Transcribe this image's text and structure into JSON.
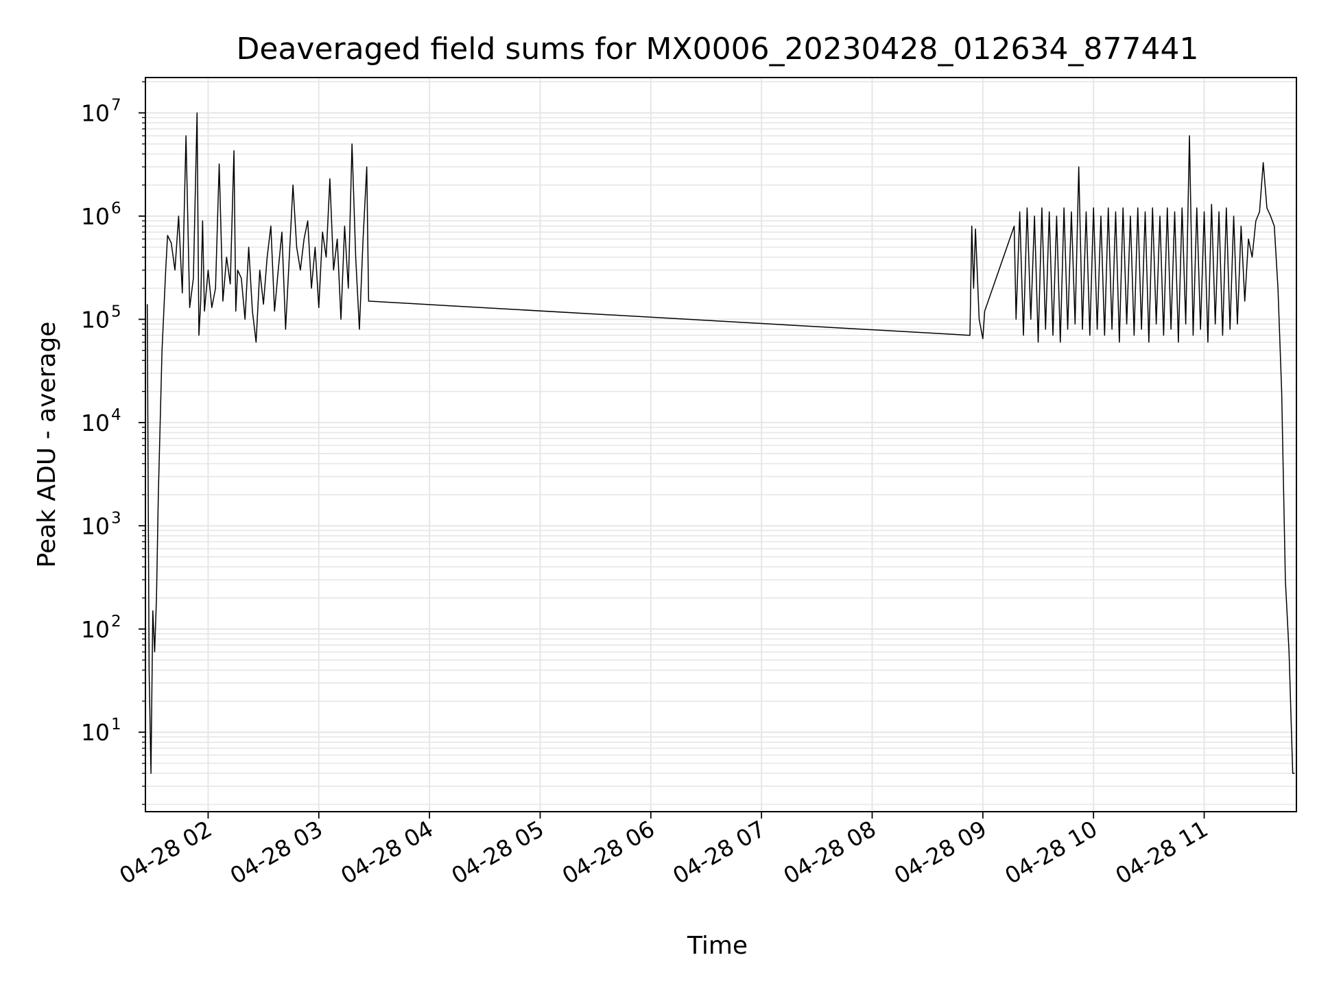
{
  "chart_data": {
    "type": "line",
    "title": "Deaveraged field sums for MX0006_20230428_012634_877441",
    "xlabel": "Time",
    "ylabel": "Peak ADU - average",
    "yscale": "log",
    "ylim": [
      1.7,
      22000000
    ],
    "xlim": [
      "2023-04-28 01:26",
      "2023-04-28 11:50"
    ],
    "grid": true,
    "grid_color": "#e6e6e6",
    "line_color": "#000000",
    "x_ticks": [
      {
        "label": "04-28 02",
        "value": "2023-04-28 02:00"
      },
      {
        "label": "04-28 03",
        "value": "2023-04-28 03:00"
      },
      {
        "label": "04-28 04",
        "value": "2023-04-28 04:00"
      },
      {
        "label": "04-28 05",
        "value": "2023-04-28 05:00"
      },
      {
        "label": "04-28 06",
        "value": "2023-04-28 06:00"
      },
      {
        "label": "04-28 07",
        "value": "2023-04-28 07:00"
      },
      {
        "label": "04-28 08",
        "value": "2023-04-28 08:00"
      },
      {
        "label": "04-28 09",
        "value": "2023-04-28 09:00"
      },
      {
        "label": "04-28 10",
        "value": "2023-04-28 10:00"
      },
      {
        "label": "04-28 11",
        "value": "2023-04-28 11:00"
      }
    ],
    "y_ticks": [
      {
        "base": "10",
        "exp": "1",
        "value": 10
      },
      {
        "base": "10",
        "exp": "2",
        "value": 100
      },
      {
        "base": "10",
        "exp": "3",
        "value": 1000
      },
      {
        "base": "10",
        "exp": "4",
        "value": 10000
      },
      {
        "base": "10",
        "exp": "5",
        "value": 100000
      },
      {
        "base": "10",
        "exp": "6",
        "value": 1000000
      },
      {
        "base": "10",
        "exp": "7",
        "value": 10000000
      }
    ],
    "series": [
      {
        "x": [
          "2023-04-28 01:27",
          "2023-04-28 01:28",
          "2023-04-28 01:29",
          "2023-04-28 01:30",
          "2023-04-28 01:31",
          "2023-04-28 01:32",
          "2023-04-28 01:33",
          "2023-04-28 01:35",
          "2023-04-28 01:37",
          "2023-04-28 01:38",
          "2023-04-28 01:40",
          "2023-04-28 01:42",
          "2023-04-28 01:44",
          "2023-04-28 01:46",
          "2023-04-28 01:48",
          "2023-04-28 01:50",
          "2023-04-28 01:52",
          "2023-04-28 01:54",
          "2023-04-28 01:55",
          "2023-04-28 01:56",
          "2023-04-28 01:57",
          "2023-04-28 01:58",
          "2023-04-28 02:00",
          "2023-04-28 02:02",
          "2023-04-28 02:04",
          "2023-04-28 02:06",
          "2023-04-28 02:08",
          "2023-04-28 02:10",
          "2023-04-28 02:12",
          "2023-04-28 02:14",
          "2023-04-28 02:15",
          "2023-04-28 02:16",
          "2023-04-28 02:18",
          "2023-04-28 02:20",
          "2023-04-28 02:22",
          "2023-04-28 02:24",
          "2023-04-28 02:26",
          "2023-04-28 02:28",
          "2023-04-28 02:30",
          "2023-04-28 02:32",
          "2023-04-28 02:34",
          "2023-04-28 02:36",
          "2023-04-28 02:38",
          "2023-04-28 02:40",
          "2023-04-28 02:42",
          "2023-04-28 02:44",
          "2023-04-28 02:46",
          "2023-04-28 02:48",
          "2023-04-28 02:50",
          "2023-04-28 02:52",
          "2023-04-28 02:54",
          "2023-04-28 02:56",
          "2023-04-28 02:58",
          "2023-04-28 03:00",
          "2023-04-28 03:02",
          "2023-04-28 03:04",
          "2023-04-28 03:06",
          "2023-04-28 03:08",
          "2023-04-28 03:10",
          "2023-04-28 03:12",
          "2023-04-28 03:14",
          "2023-04-28 03:16",
          "2023-04-28 03:18",
          "2023-04-28 03:20",
          "2023-04-28 03:22",
          "2023-04-28 03:24",
          "2023-04-28 03:26",
          "2023-04-28 03:27",
          "2023-04-28 08:53",
          "2023-04-28 08:54",
          "2023-04-28 08:55",
          "2023-04-28 08:56",
          "2023-04-28 08:58",
          "2023-04-28 09:00",
          "2023-04-28 09:01",
          "2023-04-28 09:17",
          "2023-04-28 09:18",
          "2023-04-28 09:20",
          "2023-04-28 09:22",
          "2023-04-28 09:24",
          "2023-04-28 09:26",
          "2023-04-28 09:28",
          "2023-04-28 09:30",
          "2023-04-28 09:32",
          "2023-04-28 09:34",
          "2023-04-28 09:36",
          "2023-04-28 09:38",
          "2023-04-28 09:40",
          "2023-04-28 09:42",
          "2023-04-28 09:44",
          "2023-04-28 09:46",
          "2023-04-28 09:48",
          "2023-04-28 09:50",
          "2023-04-28 09:52",
          "2023-04-28 09:54",
          "2023-04-28 09:56",
          "2023-04-28 09:58",
          "2023-04-28 10:00",
          "2023-04-28 10:02",
          "2023-04-28 10:04",
          "2023-04-28 10:06",
          "2023-04-28 10:08",
          "2023-04-28 10:10",
          "2023-04-28 10:12",
          "2023-04-28 10:14",
          "2023-04-28 10:16",
          "2023-04-28 10:18",
          "2023-04-28 10:20",
          "2023-04-28 10:22",
          "2023-04-28 10:24",
          "2023-04-28 10:26",
          "2023-04-28 10:28",
          "2023-04-28 10:30",
          "2023-04-28 10:32",
          "2023-04-28 10:34",
          "2023-04-28 10:36",
          "2023-04-28 10:38",
          "2023-04-28 10:40",
          "2023-04-28 10:42",
          "2023-04-28 10:44",
          "2023-04-28 10:46",
          "2023-04-28 10:48",
          "2023-04-28 10:50",
          "2023-04-28 10:52",
          "2023-04-28 10:54",
          "2023-04-28 10:56",
          "2023-04-28 10:58",
          "2023-04-28 11:00",
          "2023-04-28 11:02",
          "2023-04-28 11:04",
          "2023-04-28 11:06",
          "2023-04-28 11:08",
          "2023-04-28 11:10",
          "2023-04-28 11:12",
          "2023-04-28 11:14",
          "2023-04-28 11:16",
          "2023-04-28 11:18",
          "2023-04-28 11:20",
          "2023-04-28 11:22",
          "2023-04-28 11:24",
          "2023-04-28 11:26",
          "2023-04-28 11:28",
          "2023-04-28 11:30",
          "2023-04-28 11:32",
          "2023-04-28 11:34",
          "2023-04-28 11:36",
          "2023-04-28 11:38",
          "2023-04-28 11:40",
          "2023-04-28 11:42",
          "2023-04-28 11:44",
          "2023-04-28 11:46",
          "2023-04-28 11:48",
          "2023-04-28 11:49"
        ],
        "y": [
          140000,
          40,
          4,
          150,
          60,
          200,
          2000,
          50000,
          300000,
          650000,
          550000,
          300000,
          1000000,
          180000,
          6000000,
          130000,
          250000,
          10000000,
          70000,
          150000,
          900000,
          120000,
          300000,
          130000,
          200000,
          3200000,
          150000,
          400000,
          220000,
          4300000,
          120000,
          300000,
          250000,
          100000,
          500000,
          120000,
          60000,
          300000,
          140000,
          400000,
          800000,
          120000,
          300000,
          700000,
          80000,
          400000,
          2000000,
          500000,
          300000,
          600000,
          900000,
          200000,
          500000,
          130000,
          700000,
          400000,
          2300000,
          300000,
          600000,
          100000,
          800000,
          200000,
          5000000,
          400000,
          80000,
          600000,
          3000000,
          150000,
          70000,
          800000,
          200000,
          750000,
          100000,
          65000,
          120000,
          800000,
          100000,
          1100000,
          70000,
          1200000,
          100000,
          1000000,
          60000,
          1200000,
          80000,
          1100000,
          70000,
          1000000,
          60000,
          1200000,
          80000,
          1100000,
          90000,
          3000000,
          80000,
          1100000,
          70000,
          1200000,
          80000,
          1000000,
          70000,
          1200000,
          80000,
          1100000,
          60000,
          1200000,
          90000,
          1000000,
          70000,
          1200000,
          80000,
          1100000,
          60000,
          1200000,
          90000,
          1000000,
          70000,
          1200000,
          80000,
          1100000,
          60000,
          1200000,
          90000,
          6000000,
          70000,
          1200000,
          80000,
          1100000,
          60000,
          1300000,
          90000,
          1100000,
          70000,
          1200000,
          80000,
          1000000,
          90000,
          800000,
          150000,
          600000,
          400000,
          900000,
          1100000,
          3300000,
          1200000,
          1000000,
          800000,
          200000,
          20000,
          300,
          60,
          4,
          4
        ]
      }
    ]
  }
}
